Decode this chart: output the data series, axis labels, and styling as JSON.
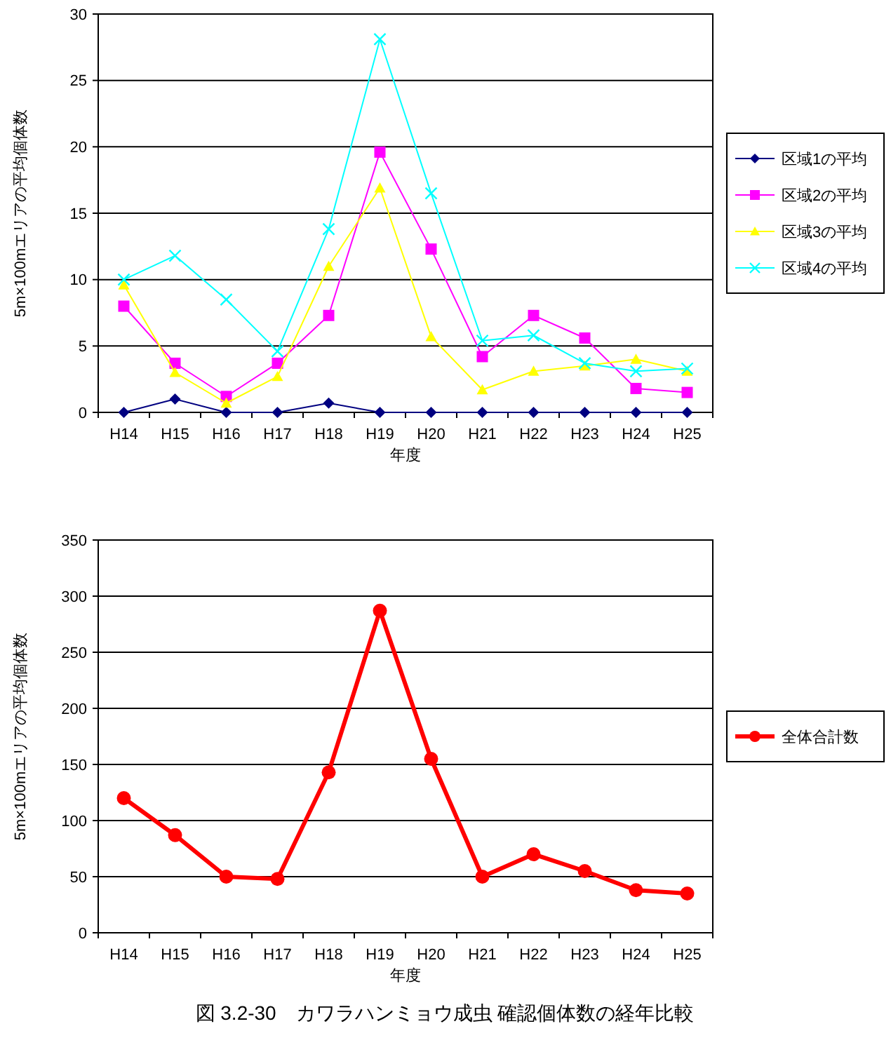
{
  "chart_data": [
    {
      "type": "line",
      "xlabel": "年度",
      "ylabel": "5m×100mエリアの平均個体数",
      "categories": [
        "H14",
        "H15",
        "H16",
        "H17",
        "H18",
        "H19",
        "H20",
        "H21",
        "H22",
        "H23",
        "H24",
        "H25"
      ],
      "series": [
        {
          "name": "区域1の平均",
          "color": "#000080",
          "marker": "diamond",
          "values": [
            0,
            1,
            0,
            0,
            0.7,
            0,
            0,
            0,
            0,
            0,
            0,
            0
          ]
        },
        {
          "name": "区域2の平均",
          "color": "#ff00ff",
          "marker": "square",
          "values": [
            8,
            3.7,
            1.2,
            3.7,
            7.3,
            19.6,
            12.3,
            4.2,
            7.3,
            5.6,
            1.8,
            1.5
          ]
        },
        {
          "name": "区域3の平均",
          "color": "#ffff00",
          "marker": "triangle",
          "values": [
            9.6,
            3,
            0.7,
            2.7,
            11,
            16.9,
            5.7,
            1.7,
            3.1,
            3.5,
            4,
            3.1
          ]
        },
        {
          "name": "区域4の平均",
          "color": "#00ffff",
          "marker": "cross",
          "values": [
            10,
            11.8,
            8.5,
            4.6,
            13.8,
            28.1,
            16.5,
            5.4,
            5.8,
            3.7,
            3.1,
            3.3
          ]
        }
      ],
      "ylim": [
        0,
        30
      ],
      "yticks": [
        0,
        5,
        10,
        15,
        20,
        25,
        30
      ],
      "grid": "y",
      "legend": "right"
    },
    {
      "type": "line",
      "xlabel": "年度",
      "ylabel": "5m×100mエリアの平均個体数",
      "categories": [
        "H14",
        "H15",
        "H16",
        "H17",
        "H18",
        "H19",
        "H20",
        "H21",
        "H22",
        "H23",
        "H24",
        "H25"
      ],
      "series": [
        {
          "name": "全体合計数",
          "color": "#ff0000",
          "marker": "circle",
          "values": [
            120,
            87,
            50,
            48,
            143,
            287,
            155,
            50,
            70,
            55,
            38,
            35
          ]
        }
      ],
      "ylim": [
        0,
        350
      ],
      "yticks": [
        0,
        50,
        100,
        150,
        200,
        250,
        300,
        350
      ],
      "grid": "y",
      "legend": "right",
      "annotations": [
        "図 3.2-30　カワラハンミョウ成虫 確認個体数の経年比較"
      ]
    }
  ]
}
